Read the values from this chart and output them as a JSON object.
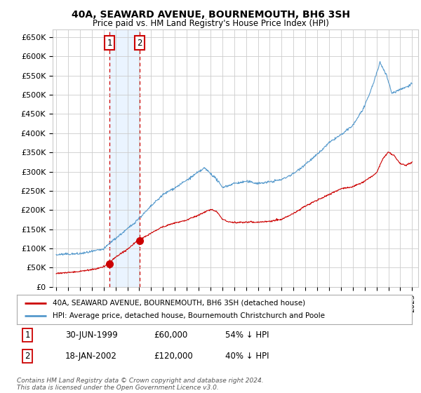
{
  "title": "40A, SEAWARD AVENUE, BOURNEMOUTH, BH6 3SH",
  "subtitle": "Price paid vs. HM Land Registry's House Price Index (HPI)",
  "ylabel_ticks": [
    "£0",
    "£50K",
    "£100K",
    "£150K",
    "£200K",
    "£250K",
    "£300K",
    "£350K",
    "£400K",
    "£450K",
    "£500K",
    "£550K",
    "£600K",
    "£650K"
  ],
  "ytick_values": [
    0,
    50000,
    100000,
    150000,
    200000,
    250000,
    300000,
    350000,
    400000,
    450000,
    500000,
    550000,
    600000,
    650000
  ],
  "ylim": [
    0,
    670000
  ],
  "xlim_start": 1994.7,
  "xlim_end": 2025.5,
  "sale1_date": 1999.496,
  "sale1_price": 60000,
  "sale1_label": "1",
  "sale2_date": 2002.046,
  "sale2_price": 120000,
  "sale2_label": "2",
  "red_line_color": "#cc0000",
  "blue_line_color": "#5599cc",
  "grid_color": "#cccccc",
  "shade_color": "#ddeeff",
  "legend_line1": "40A, SEAWARD AVENUE, BOURNEMOUTH, BH6 3SH (detached house)",
  "legend_line2": "HPI: Average price, detached house, Bournemouth Christchurch and Poole",
  "table_row1": [
    "1",
    "30-JUN-1999",
    "£60,000",
    "54% ↓ HPI"
  ],
  "table_row2": [
    "2",
    "18-JAN-2002",
    "£120,000",
    "40% ↓ HPI"
  ],
  "footnote": "Contains HM Land Registry data © Crown copyright and database right 2024.\nThis data is licensed under the Open Government Licence v3.0.",
  "background_color": "#ffffff"
}
